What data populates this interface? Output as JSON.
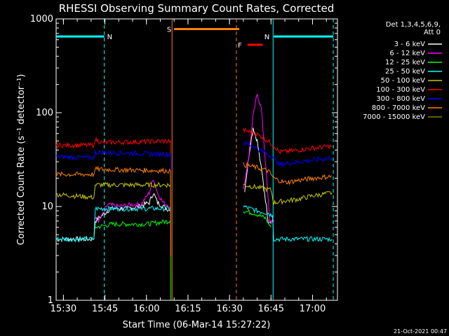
{
  "chart_data": {
    "type": "line",
    "title": "RHESSI Observing Summary Count Rates, Corrected",
    "xlabel": "Start Time (06-Mar-14 15:27:22)",
    "ylabel": "Corrected Count Rate (s⁻¹ detector⁻¹)",
    "yscale": "log",
    "ylim": [
      1,
      1000
    ],
    "xlim": [
      "15:27:22",
      "17:09:00"
    ],
    "x_ticks": [
      "15:30",
      "15:45",
      "16:00",
      "16:15",
      "16:30",
      "16:45",
      "17:00"
    ],
    "y_ticks": [
      "1",
      "10",
      "100",
      "1000"
    ],
    "grid": false,
    "legend": {
      "position": "top-right",
      "header": [
        "Det 1,3,4,5,6,9,",
        "Att 0"
      ],
      "entries": [
        {
          "label": "3 - 6 keV",
          "color": "#ffffff"
        },
        {
          "label": "6 - 12 keV",
          "color": "#ff00ff"
        },
        {
          "label": "12 - 25 keV",
          "color": "#00ff00"
        },
        {
          "label": "25 - 50 keV",
          "color": "#00ffff"
        },
        {
          "label": "50 - 100 keV",
          "color": "#c8c800"
        },
        {
          "label": "100 - 300 keV",
          "color": "#ff0000"
        },
        {
          "label": "300 - 800 keV",
          "color": "#0000ff"
        },
        {
          "label": "800 - 7000 keV",
          "color": "#ff8000"
        },
        {
          "label": "7000 - 15000 keV",
          "color": "#808000"
        }
      ]
    },
    "flags": [
      {
        "label": "N",
        "color": "#00ffff",
        "start": "15:27:22",
        "end": "15:44:45",
        "level": 650
      },
      {
        "label": "N",
        "color": "#00ffff",
        "start": "16:46:00",
        "end": "17:07:30",
        "level": 650
      },
      {
        "label": "S",
        "color": "#ff8000",
        "start": "16:10:00",
        "end": "16:33:30",
        "level": 780
      },
      {
        "label": "F",
        "color": "#ff0000",
        "start": "16:36:30",
        "end": "16:42:00",
        "level": 530
      }
    ],
    "markers": [
      {
        "time": "15:44:45",
        "color": "#00ffff",
        "style": "dashed"
      },
      {
        "time": "16:09:15",
        "color": "#ff8000",
        "style": "solid"
      },
      {
        "time": "16:32:30",
        "color": "#ff8000",
        "style": "dashed"
      },
      {
        "time": "16:45:45",
        "color": "#00ffff",
        "style": "solid"
      },
      {
        "time": "17:07:30",
        "color": "#00ffff",
        "style": "dashed"
      }
    ],
    "series": [
      {
        "color": "#ffffff",
        "x": [
          "15:27:22",
          "15:41:00",
          "15:41:30",
          "15:47:00",
          "15:53:00",
          "15:57:00",
          "16:01:00",
          "16:02:30",
          "16:04:00",
          "16:08:30",
          "16:08:40",
          "16:33:00",
          "16:35:30",
          "16:37:00",
          "16:38:30",
          "16:40:00",
          "16:42:00",
          "16:44:00",
          "16:46:00"
        ],
        "y": [
          4.5,
          4.5,
          7.0,
          9.5,
          9.5,
          10.0,
          11.0,
          14.0,
          11.0,
          9.0,
          9.0,
          null,
          15.0,
          35.0,
          70.0,
          50.0,
          20.0,
          7.0,
          7.0
        ]
      },
      {
        "color": "#ff00ff",
        "x": [
          "15:41:00",
          "15:43:00",
          "15:46:00",
          "15:50:00",
          "15:55:00",
          "15:58:00",
          "16:01:00",
          "16:02:30",
          "16:04:00",
          "16:06:00",
          "16:08:40",
          "16:33:00",
          "16:35:00",
          "16:37:00",
          "16:38:30",
          "16:40:00",
          "16:41:30",
          "16:43:00",
          "16:44:30",
          "16:46:00"
        ],
        "y": [
          7.5,
          7.0,
          10.5,
          10.0,
          10.5,
          10.5,
          14.0,
          20.0,
          14.0,
          11.0,
          10.0,
          null,
          15.0,
          35.0,
          90.0,
          160.0,
          110.0,
          30.0,
          7.0,
          7.0
        ]
      },
      {
        "color": "#00ff00",
        "x": [
          "15:27:22",
          "15:41:00",
          "15:41:30",
          "15:48:00",
          "16:00:00",
          "16:08:30",
          "16:08:40",
          "16:08:45",
          "16:33:00",
          "16:35:00",
          "16:39:00",
          "16:43:00",
          "16:45:00"
        ],
        "y": [
          null,
          null,
          6.0,
          6.5,
          6.5,
          7.0,
          7.0,
          1.0,
          null,
          9.0,
          8.5,
          7.5,
          6.0
        ]
      },
      {
        "color": "#00ffff",
        "x": [
          "15:27:22",
          "15:41:00",
          "15:41:30",
          "15:48:00",
          "16:00:00",
          "16:08:30",
          "16:08:40",
          "16:08:45",
          "16:33:00",
          "16:35:00",
          "16:40:00",
          "16:44:00",
          "16:45:30",
          "16:46:00",
          "16:48:00",
          "17:00:00",
          "17:02:00",
          "17:07:00"
        ],
        "y": [
          4.5,
          4.5,
          9.5,
          9.5,
          9.5,
          9.5,
          9.5,
          3.0,
          null,
          10.0,
          9.0,
          8.5,
          8.0,
          4.5,
          4.5,
          4.5,
          4.5,
          4.5
        ]
      },
      {
        "color": "#c8c800",
        "x": [
          "15:27:22",
          "15:41:00",
          "15:41:30",
          "16:08:40",
          "16:08:45",
          "16:33:00",
          "16:35:00",
          "16:40:00",
          "16:45:00",
          "16:46:00",
          "16:50:00",
          "16:55:00",
          "17:00:00",
          "17:07:00"
        ],
        "y": [
          13.5,
          12.5,
          17.0,
          17.0,
          3.0,
          null,
          17.0,
          16.0,
          15.0,
          11.0,
          11.5,
          12.0,
          13.0,
          14.0
        ]
      },
      {
        "color": "#ff0000",
        "x": [
          "15:27:22",
          "15:41:00",
          "15:41:30",
          "15:44:00",
          "16:08:40",
          "16:08:45",
          "16:33:00",
          "16:35:00",
          "16:38:00",
          "16:42:00",
          "16:46:00",
          "16:48:00",
          "16:55:00",
          "17:00:00",
          "17:07:00"
        ],
        "y": [
          45.0,
          45.0,
          52.0,
          48.0,
          50.0,
          3.0,
          null,
          65.0,
          62.0,
          55.0,
          45.0,
          38.0,
          40.0,
          42.0,
          44.0
        ]
      },
      {
        "color": "#0000ff",
        "x": [
          "15:27:22",
          "15:41:00",
          "15:41:30",
          "16:08:40",
          "16:08:45",
          "16:33:00",
          "16:35:00",
          "16:38:00",
          "16:41:00",
          "16:46:00",
          "16:48:00",
          "16:55:00",
          "17:07:00"
        ],
        "y": [
          34.0,
          33.0,
          38.0,
          36.0,
          3.0,
          null,
          48.0,
          45.0,
          40.0,
          33.0,
          28.0,
          30.0,
          33.0
        ]
      },
      {
        "color": "#ff8000",
        "x": [
          "15:27:22",
          "15:41:00",
          "15:41:30",
          "16:08:40",
          "16:08:45",
          "16:33:00",
          "16:35:00",
          "16:40:00",
          "16:44:00",
          "16:46:00",
          "16:50:00",
          "16:55:00",
          "17:00:00",
          "17:07:00"
        ],
        "y": [
          22.0,
          22.0,
          25.0,
          24.0,
          3.0,
          null,
          28.0,
          26.0,
          24.0,
          20.0,
          18.0,
          19.0,
          20.0,
          21.0
        ]
      }
    ]
  },
  "footer": {
    "date": "21-Oct-2021 00:47"
  }
}
